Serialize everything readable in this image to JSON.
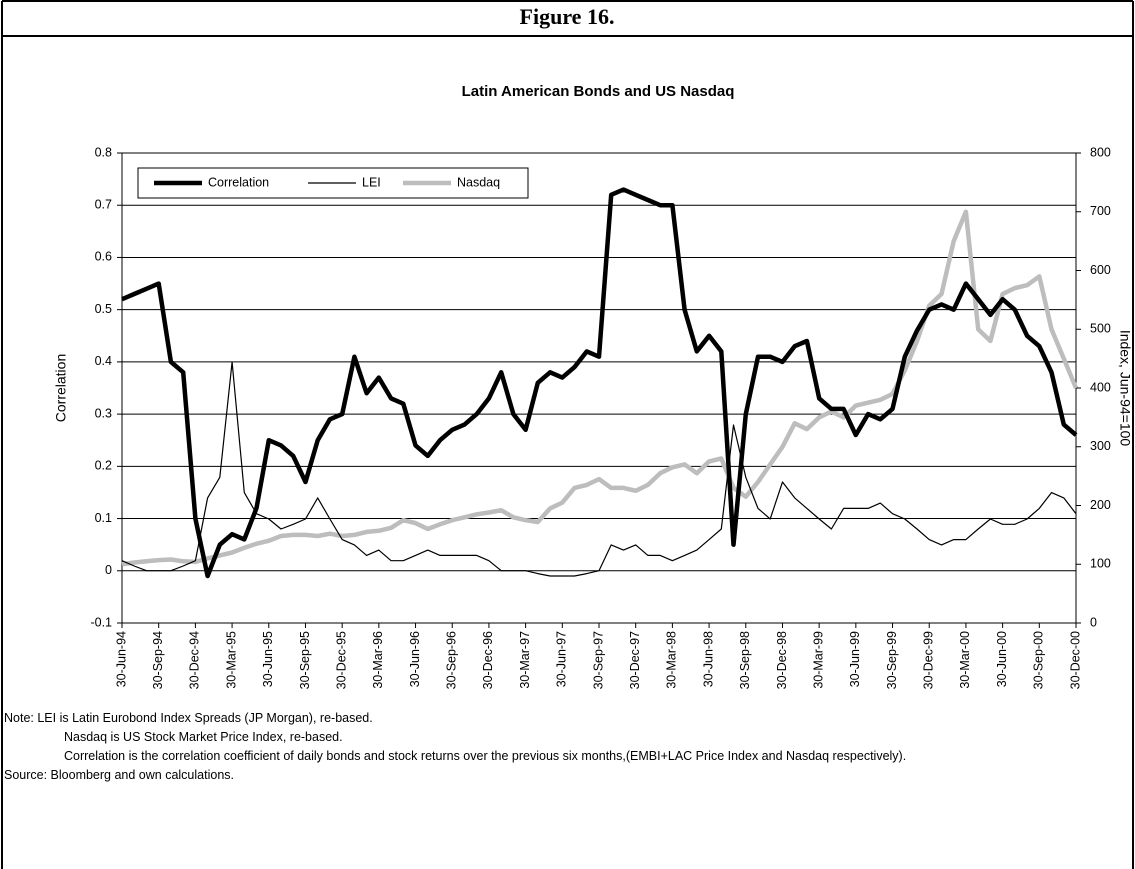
{
  "heading": "Figure 16.",
  "chart_data": {
    "type": "line",
    "title": "Latin American Bonds and US Nasdaq",
    "y_label": "Correlation",
    "y2_label": "Index, Jun-94=100",
    "categories": [
      "30-Jun-94",
      null,
      null,
      "30-Sep-94",
      null,
      null,
      "30-Dec-94",
      null,
      null,
      "30-Mar-95",
      null,
      null,
      "30-Jun-95",
      null,
      null,
      "30-Sep-95",
      null,
      null,
      "30-Dec-95",
      null,
      null,
      "30-Mar-96",
      null,
      null,
      "30-Jun-96",
      null,
      null,
      "30-Sep-96",
      null,
      null,
      "30-Dec-96",
      null,
      null,
      "30-Mar-97",
      null,
      null,
      "30-Jun-97",
      null,
      null,
      "30-Sep-97",
      null,
      null,
      "30-Dec-97",
      null,
      null,
      "30-Mar-98",
      null,
      null,
      "30-Jun-98",
      null,
      null,
      "30-Sep-98",
      null,
      null,
      "30-Dec-98",
      null,
      null,
      "30-Mar-99",
      null,
      null,
      "30-Jun-99",
      null,
      null,
      "30-Sep-99",
      null,
      null,
      "30-Dec-99",
      null,
      null,
      "30-Mar-00",
      null,
      null,
      "30-Jun-00",
      null,
      null,
      "30-Sep-00",
      null,
      null,
      "30-Dec-00"
    ],
    "series": [
      {
        "name": "Correlation",
        "color": "#000000",
        "values": [
          0.52,
          0.53,
          0.54,
          0.55,
          0.4,
          0.38,
          0.1,
          -0.01,
          0.05,
          0.07,
          0.06,
          0.12,
          0.25,
          0.24,
          0.22,
          0.17,
          0.25,
          0.29,
          0.3,
          0.41,
          0.34,
          0.37,
          0.33,
          0.32,
          0.24,
          0.22,
          0.25,
          0.27,
          0.28,
          0.3,
          0.33,
          0.38,
          0.3,
          0.27,
          0.36,
          0.38,
          0.37,
          0.39,
          0.42,
          0.41,
          0.72,
          0.73,
          0.72,
          0.71,
          0.7,
          0.7,
          0.5,
          0.42,
          0.45,
          0.42,
          0.05,
          0.3,
          0.41,
          0.41,
          0.4,
          0.43,
          0.44,
          0.33,
          0.31,
          0.31,
          0.26,
          0.3,
          0.29,
          0.31,
          0.41,
          0.46,
          0.5,
          0.51,
          0.5,
          0.55,
          0.52,
          0.49,
          0.52,
          0.5,
          0.45,
          0.43,
          0.38,
          0.28,
          0.26
        ]
      },
      {
        "name": "LEI",
        "color": "#000000",
        "axis": "y2",
        "values": [
          106,
          97,
          89,
          89,
          89,
          97,
          106,
          213,
          248,
          444,
          222,
          186,
          177,
          160,
          168,
          177,
          213,
          177,
          142,
          133,
          115,
          124,
          106,
          106,
          115,
          124,
          115,
          115,
          115,
          115,
          106,
          89,
          89,
          89,
          84,
          80,
          80,
          80,
          84,
          89,
          133,
          124,
          133,
          115,
          115,
          106,
          115,
          124,
          142,
          160,
          337,
          248,
          195,
          177,
          240,
          213,
          195,
          177,
          160,
          195,
          195,
          195,
          204,
          186,
          177,
          160,
          142,
          133,
          142,
          142,
          160,
          177,
          168,
          168,
          177,
          195,
          222,
          213,
          186
        ]
      },
      {
        "name": "Nasdaq",
        "color": "#bdbdbd",
        "axis": "y2",
        "values": [
          100,
          103,
          105,
          107,
          108,
          105,
          104,
          110,
          115,
          120,
          128,
          135,
          140,
          148,
          150,
          150,
          148,
          152,
          148,
          150,
          155,
          157,
          162,
          175,
          170,
          160,
          168,
          175,
          180,
          185,
          188,
          192,
          180,
          175,
          172,
          195,
          205,
          230,
          235,
          245,
          230,
          230,
          225,
          235,
          255,
          265,
          270,
          255,
          275,
          280,
          230,
          215,
          240,
          270,
          300,
          340,
          330,
          350,
          360,
          350,
          370,
          375,
          380,
          390,
          430,
          480,
          540,
          560,
          650,
          700,
          500,
          480,
          560,
          570,
          575,
          590,
          500,
          450,
          400
        ]
      }
    ],
    "ylim": [
      -0.1,
      0.8
    ],
    "yticks": [
      -0.1,
      0,
      0.1,
      0.2,
      0.3,
      0.4,
      0.5,
      0.6,
      0.7,
      0.8
    ],
    "y2lim": [
      0,
      800
    ],
    "y2ticks": [
      0,
      100,
      200,
      300,
      400,
      500,
      600,
      700,
      800
    ],
    "grid": true,
    "legend": "upper left"
  },
  "notes": [
    "Note: LEI is Latin Eurobond Index Spreads (JP Morgan), re-based.",
    "Nasdaq is US Stock Market Price Index, re-based.",
    "Correlation is the correlation coefficient of daily bonds and stock returns over the previous six months,(EMBI+LAC Price Index and Nasdaq respectively).",
    "Source: Bloomberg and own calculations."
  ]
}
